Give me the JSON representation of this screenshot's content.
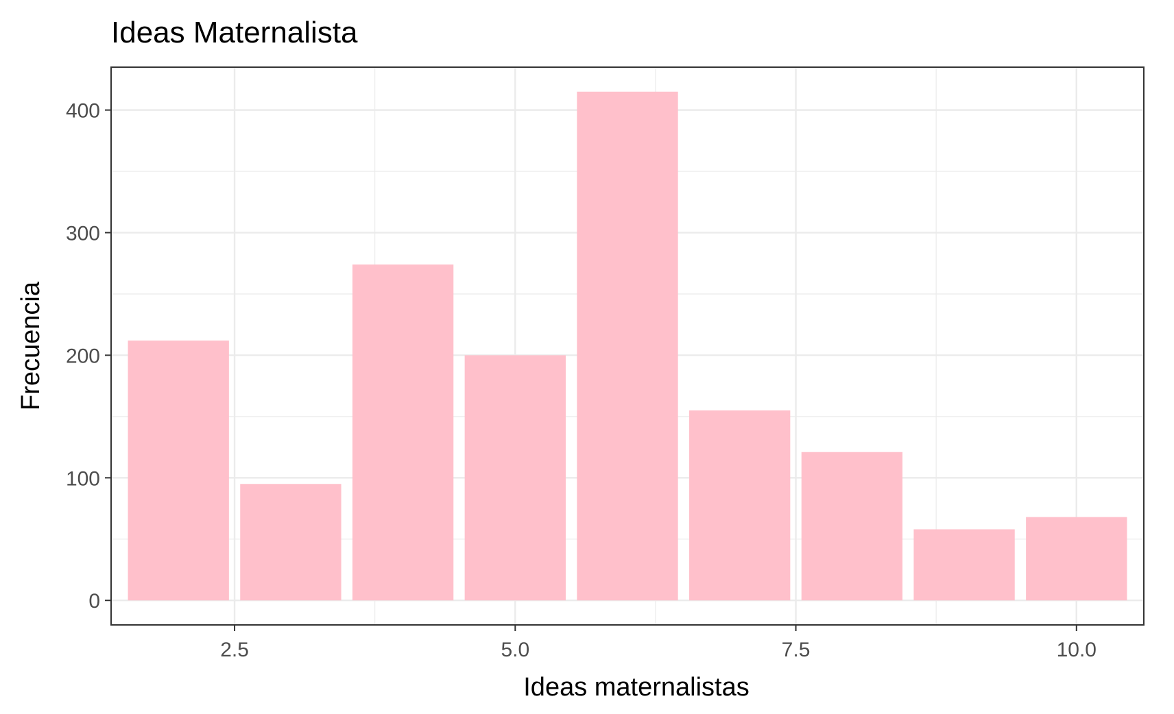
{
  "chart_data": {
    "type": "bar",
    "title": "Ideas Maternalista",
    "xlabel": "Ideas maternalistas",
    "ylabel": "Frecuencia",
    "x": [
      2,
      3,
      4,
      5,
      6,
      7,
      8,
      9,
      10
    ],
    "values": [
      212,
      95,
      274,
      200,
      415,
      155,
      121,
      58,
      68
    ],
    "xlim": [
      1.4,
      10.6
    ],
    "ylim": [
      -20,
      435
    ],
    "x_ticks": [
      2.5,
      5.0,
      7.5,
      10.0
    ],
    "x_tick_labels": [
      "2.5",
      "5.0",
      "7.5",
      "10.0"
    ],
    "y_ticks": [
      0,
      100,
      200,
      300,
      400
    ],
    "y_tick_labels": [
      "0",
      "100",
      "200",
      "300",
      "400"
    ],
    "bar_color": "#FFC0CB",
    "grid": true,
    "theme": "bw",
    "legend": "none"
  }
}
